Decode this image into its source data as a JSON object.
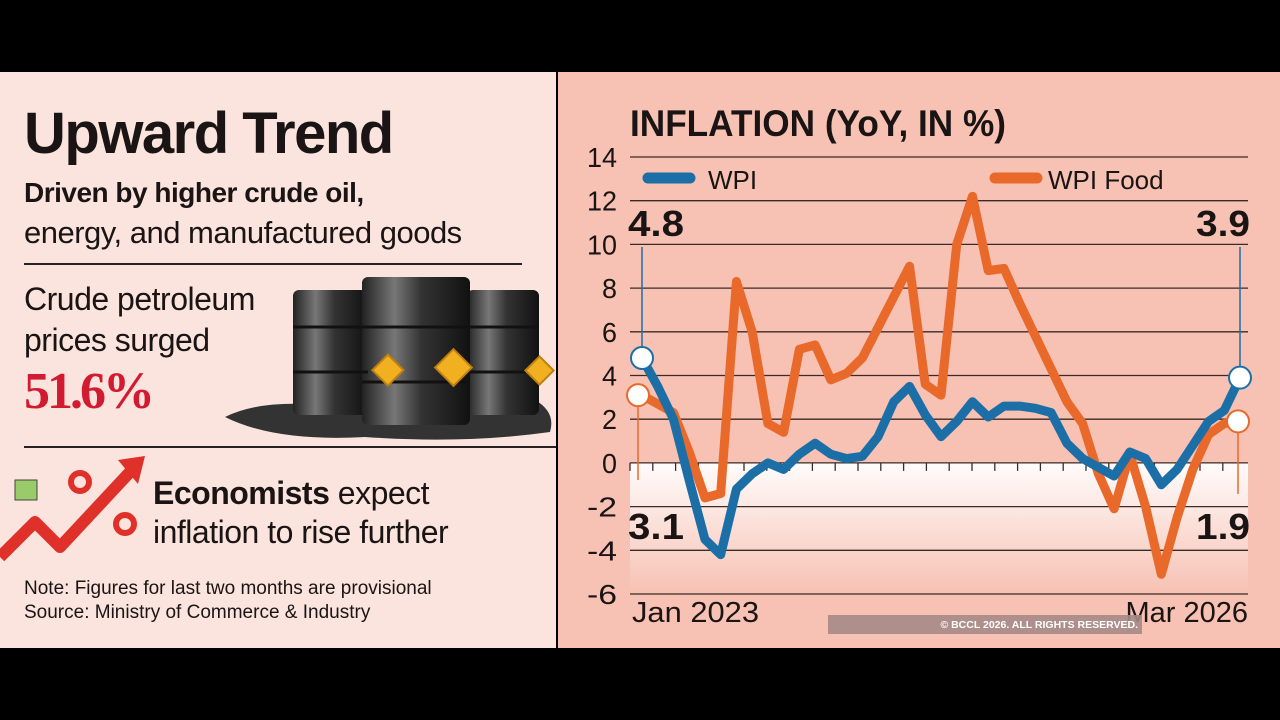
{
  "left": {
    "headline": "Upward Trend",
    "subhead_bold": "Driven by higher crude oil,",
    "subhead_regular": "energy, and manufactured goods",
    "crude_line1": "Crude petroleum",
    "crude_line2": "prices surged",
    "crude_value": "51.6%",
    "economists_bold": "Economists",
    "economists_rest1": " expect",
    "economists_line2": "inflation to rise further",
    "note": "Note: Figures for last two months are provisional",
    "source": "Source: Ministry of Commerce & Industry",
    "icons": [
      "oil-barrels-illustration",
      "rising-percent-arrow-icon"
    ],
    "accent_color": "#d21a30"
  },
  "copyright": "© BCCL 2026. ALL RIGHTS RESERVED.",
  "chart_data": {
    "type": "line",
    "title": "INFLATION (YoY, IN %)",
    "x_start_label": "Jan 2023",
    "x_end_label": "Mar 2026",
    "ylim": [
      -6,
      14
    ],
    "yticks": [
      14,
      12,
      10,
      8,
      6,
      4,
      2,
      0,
      -2,
      -4,
      -6
    ],
    "grid": true,
    "legend_placement": "top",
    "series": [
      {
        "name": "WPI",
        "color": "#1b6fa6",
        "start_label": "4.8",
        "end_label": "3.9",
        "values": [
          4.8,
          3.5,
          2.0,
          -0.8,
          -3.5,
          -4.2,
          -1.2,
          -0.5,
          0.0,
          -0.3,
          0.4,
          0.9,
          0.4,
          0.2,
          0.3,
          1.2,
          2.8,
          3.5,
          2.2,
          1.2,
          1.9,
          2.8,
          2.1,
          2.6,
          2.6,
          2.5,
          2.3,
          0.9,
          0.2,
          -0.2,
          -0.6,
          0.5,
          0.2,
          -1.0,
          -0.3,
          0.8,
          1.9,
          2.4,
          3.9
        ]
      },
      {
        "name": "WPI Food",
        "color": "#e8692a",
        "start_label": "3.1",
        "end_label": "1.9",
        "values": [
          3.1,
          2.7,
          2.3,
          0.5,
          -1.6,
          -1.4,
          8.3,
          6.0,
          1.8,
          1.4,
          5.2,
          5.4,
          3.8,
          4.1,
          4.8,
          6.2,
          7.6,
          9.0,
          3.6,
          3.1,
          10.0,
          12.2,
          8.8,
          8.9,
          7.3,
          5.8,
          4.3,
          2.8,
          1.8,
          -0.5,
          -2.1,
          0.4,
          -2.0,
          -5.1,
          -2.5,
          -0.3,
          1.3,
          1.8,
          1.9
        ]
      }
    ]
  }
}
